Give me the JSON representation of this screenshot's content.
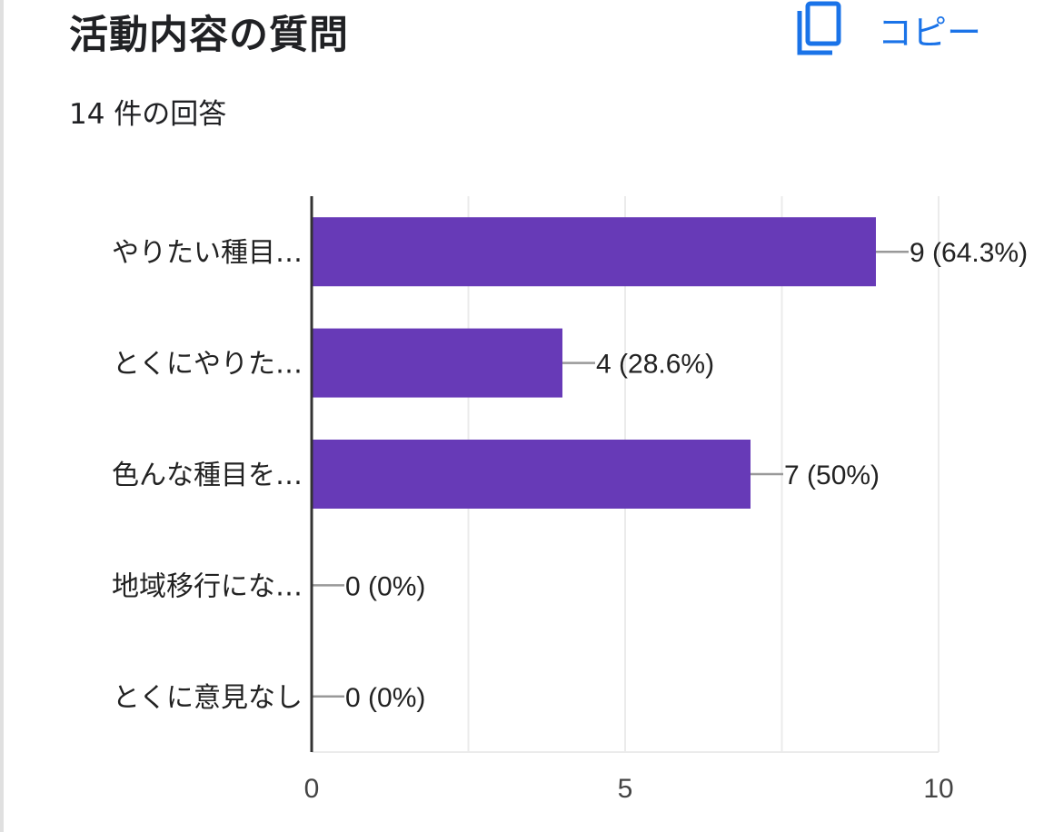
{
  "question": {
    "title": "活動内容の質問",
    "response_count": "14 件の回答"
  },
  "copy_button": {
    "label": "コピー",
    "icon": "copy-icon",
    "color": "#1a73e8"
  },
  "chart_data": {
    "type": "bar",
    "orientation": "horizontal",
    "categories": [
      "やりたい種目…",
      "とくにやりた…",
      "色んな種目を…",
      "地域移行にな…",
      "とくに意見なし"
    ],
    "values": [
      9,
      4,
      7,
      0,
      0
    ],
    "data_labels": [
      "9 (64.3%)",
      "4 (28.6%)",
      "7 (50%)",
      "0 (0%)",
      "0 (0%)"
    ],
    "xlim": [
      0,
      10
    ],
    "x_ticks": [
      0,
      5,
      10
    ],
    "x_tick_labels": [
      "0",
      "5",
      "10"
    ],
    "grid": true,
    "bar_color": "#673ab7",
    "title": "",
    "xlabel": "",
    "ylabel": ""
  }
}
